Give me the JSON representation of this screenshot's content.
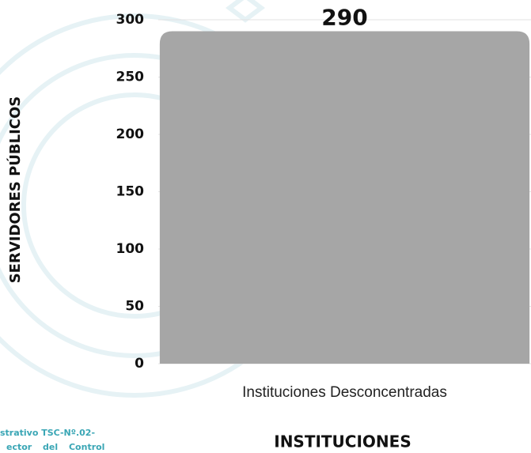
{
  "chart_data": {
    "type": "bar",
    "y_label": "SERVIDORES PÚBLICOS",
    "x_label": "INSTITUCIONES",
    "categories": [
      "Instituciones Desconcentradas"
    ],
    "values": [
      290
    ],
    "color": "#a6a6a6",
    "ylim": [
      0,
      300
    ],
    "yticks": [
      0,
      50,
      100,
      150,
      200,
      250,
      300
    ],
    "grid": true,
    "annotations": [
      "strativo TSC-Nº.02-",
      "ector del Control"
    ]
  }
}
